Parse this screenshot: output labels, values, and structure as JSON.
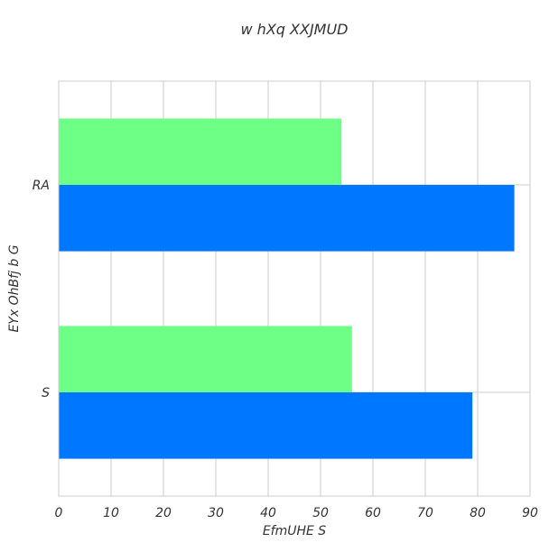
{
  "chart_data": {
    "type": "bar",
    "orientation": "horizontal",
    "title": "w  hXq XXJMUD",
    "xlabel": "EfmUHE S",
    "ylabel": "EYx OhBfj b G",
    "categories": [
      "RA",
      "S"
    ],
    "series": [
      {
        "values": [
          54,
          56
        ],
        "color": "#6eff87"
      },
      {
        "values": [
          87,
          79
        ],
        "color": "#0077ff"
      }
    ],
    "xlim": [
      0,
      90
    ],
    "xticks": [
      "0",
      "10",
      "20",
      "30",
      "40",
      "50",
      "60",
      "70",
      "80",
      "90"
    ],
    "grid": true
  }
}
